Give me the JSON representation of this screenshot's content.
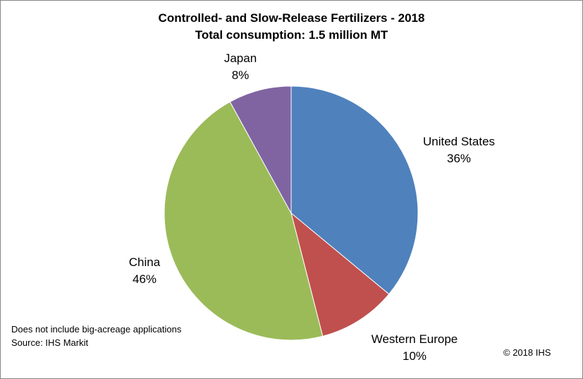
{
  "chart_data": {
    "type": "pie",
    "title": "Controlled- and Slow-Release Fertilizers - 2018",
    "subtitle": "Total consumption: 1.5 million MT",
    "slices": [
      {
        "name": "United States",
        "value": 36,
        "label": "36%",
        "color": "#4F81BD"
      },
      {
        "name": "Western Europe",
        "value": 10,
        "label": "10%",
        "color": "#C0504D"
      },
      {
        "name": "China",
        "value": 46,
        "label": "46%",
        "color": "#9BBB59"
      },
      {
        "name": "Japan",
        "value": 8,
        "label": "8%",
        "color": "#8064A2"
      }
    ],
    "legend": "none",
    "notes": [
      "Does not include big-acreage applications",
      "Source: IHS Markit"
    ],
    "copyright": "© 2018 IHS"
  }
}
